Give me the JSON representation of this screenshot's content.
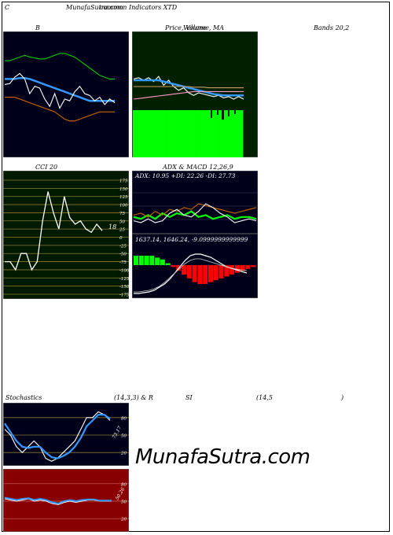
{
  "header": {
    "corner_label": "C",
    "site_title": "MunafaSutra.com",
    "subtitle": "common Indicators XTD"
  },
  "panel_titles": {
    "bollinger_b": "B",
    "price_volume_ma": "Price, Volume, MA",
    "ma_overlay": "Volume",
    "bands": "Bands 20,2",
    "cci": "CCI 20",
    "adx_macd": "ADX  & MACD 12,26,9",
    "stochastics": "Stochastics",
    "stoch_params": "(14,3,3) & R",
    "rsi": "SI",
    "rsi_params": "(14,5",
    "close_paren": ")"
  },
  "adx_readout": "ADX: 10.95  +DI: 22.26  -DI: 27.73",
  "macd_readout": "1637.14,  1646.24,  -9.0999999999999",
  "cci_value_label": "18",
  "stoch_value_label": "73.17",
  "rsi_value_label": "50.26",
  "watermark": "MunafaSutra.com",
  "colors": {
    "dark_bg": "#00001a",
    "green_bg": "#002000",
    "olive_bg": "#001a00",
    "red_bg": "#880000",
    "bright_green": "#00ff00",
    "blue": "#3399ff",
    "orange": "#cc6600",
    "white": "#ffffff",
    "red": "#ff0000"
  },
  "chart_data": [
    {
      "type": "line",
      "panel": "bollinger",
      "title": "B",
      "series": [
        {
          "color": "#00cc00",
          "values": [
            80,
            80,
            82,
            84,
            86,
            84,
            83,
            82,
            82,
            84,
            86,
            88,
            88,
            86,
            84,
            80,
            76,
            72,
            68,
            64,
            62,
            60,
            60
          ]
        },
        {
          "color": "#3399ff",
          "values": [
            60,
            60,
            60,
            61,
            61,
            60,
            58,
            56,
            54,
            52,
            50,
            48,
            46,
            44,
            42,
            40,
            38,
            36,
            36,
            36,
            36,
            36,
            36
          ]
        },
        {
          "color": "#ffffff",
          "values": [
            54,
            55,
            62,
            66,
            60,
            44,
            52,
            50,
            38,
            30,
            44,
            28,
            38,
            36,
            46,
            52,
            44,
            42,
            36,
            40,
            32,
            38,
            34
          ]
        },
        {
          "color": "#cc6600",
          "values": [
            40,
            40,
            40,
            38,
            36,
            34,
            32,
            30,
            28,
            26,
            24,
            20,
            16,
            14,
            14,
            16,
            18,
            20,
            22,
            24,
            24,
            24,
            24
          ]
        }
      ]
    },
    {
      "type": "line",
      "panel": "price_volume",
      "title": "Price, Volume, MA",
      "series": [
        {
          "color": "#ffffff",
          "values": [
            62,
            64,
            60,
            64,
            58,
            66,
            52,
            60,
            50,
            44,
            48,
            40,
            36,
            40,
            38,
            36,
            34,
            36,
            32,
            34,
            30,
            34,
            30
          ]
        },
        {
          "color": "#3399ff",
          "values": [
            60,
            60,
            60,
            60,
            60,
            60,
            58,
            56,
            54,
            52,
            50,
            48,
            46,
            44,
            42,
            40,
            38,
            37,
            36,
            36,
            36,
            36,
            36
          ]
        },
        {
          "color": "#ff99cc",
          "values": [
            30,
            31,
            32,
            33,
            34,
            35,
            36,
            37,
            38,
            39,
            40,
            41,
            42,
            42,
            42,
            42,
            42,
            42,
            42,
            42,
            42,
            42,
            42
          ]
        },
        {
          "color": "#cc9966",
          "values": [
            50,
            50,
            50,
            50,
            50,
            50,
            50,
            50,
            50,
            50,
            50,
            50,
            49,
            49,
            49,
            48,
            48,
            48,
            48,
            48,
            48,
            48,
            48
          ]
        }
      ],
      "volume": [
        40,
        40,
        40,
        40,
        40,
        40,
        40,
        40,
        40,
        40,
        40,
        40,
        40,
        40,
        40,
        40,
        40,
        40,
        40,
        40,
        40,
        40,
        40
      ]
    },
    {
      "type": "line",
      "panel": "cci",
      "title": "CCI 20",
      "ylim": [
        -175,
        175
      ],
      "yticks": [
        175,
        150,
        125,
        100,
        75,
        50,
        25,
        0,
        -25,
        -50,
        -75,
        -100,
        -125,
        -150,
        -175
      ],
      "values": [
        -75,
        -75,
        -100,
        -50,
        -50,
        -100,
        -75,
        50,
        140,
        75,
        25,
        125,
        60,
        40,
        50,
        25,
        15,
        40,
        20
      ]
    },
    {
      "type": "line",
      "panel": "adx",
      "title": "ADX  & MACD 12,26,9",
      "series": [
        {
          "color": "#00ff00",
          "values": [
            16,
            14,
            18,
            14,
            20,
            16,
            20,
            18,
            22,
            16,
            18,
            14,
            16,
            18,
            14,
            16,
            16,
            14
          ]
        },
        {
          "color": "#cc6600",
          "values": [
            18,
            20,
            16,
            22,
            18,
            24,
            22,
            26,
            24,
            30,
            28,
            26,
            24,
            22,
            20,
            22,
            24,
            26
          ]
        },
        {
          "color": "#ffffff",
          "values": [
            12,
            10,
            14,
            10,
            12,
            20,
            24,
            18,
            16,
            22,
            30,
            26,
            20,
            16,
            10,
            12,
            14,
            12
          ]
        }
      ]
    },
    {
      "type": "bar",
      "panel": "macd",
      "values": [
        10,
        10,
        10,
        10,
        8,
        6,
        2,
        -2,
        -6,
        -10,
        -14,
        -18,
        -20,
        -20,
        -18,
        -16,
        -14,
        -12,
        -10,
        -8,
        -6,
        -4,
        -2
      ]
    },
    {
      "type": "line",
      "panel": "stochastics",
      "title": "Stochastics",
      "yticks": [
        80,
        50,
        20
      ],
      "series": [
        {
          "color": "#ffffff",
          "values": [
            60,
            50,
            30,
            20,
            30,
            40,
            30,
            10,
            5,
            10,
            20,
            30,
            40,
            60,
            80,
            80,
            90,
            85,
            75
          ]
        },
        {
          "color": "#3399ff",
          "values": [
            70,
            55,
            40,
            30,
            28,
            30,
            30,
            20,
            12,
            10,
            14,
            20,
            30,
            45,
            65,
            75,
            85,
            85,
            78
          ]
        }
      ]
    },
    {
      "type": "line",
      "panel": "rsi",
      "title": "SI",
      "yticks": [
        80,
        50,
        20
      ],
      "series": [
        {
          "color": "#ffffff",
          "values": [
            54,
            52,
            50,
            52,
            54,
            50,
            52,
            50,
            46,
            44,
            48,
            50,
            48,
            50,
            52,
            52,
            50,
            50,
            50
          ]
        },
        {
          "color": "#3399ff",
          "values": [
            56,
            54,
            52,
            54,
            55,
            52,
            54,
            52,
            48,
            46,
            50,
            52,
            50,
            52,
            53,
            53,
            51,
            51,
            51
          ]
        }
      ]
    }
  ]
}
